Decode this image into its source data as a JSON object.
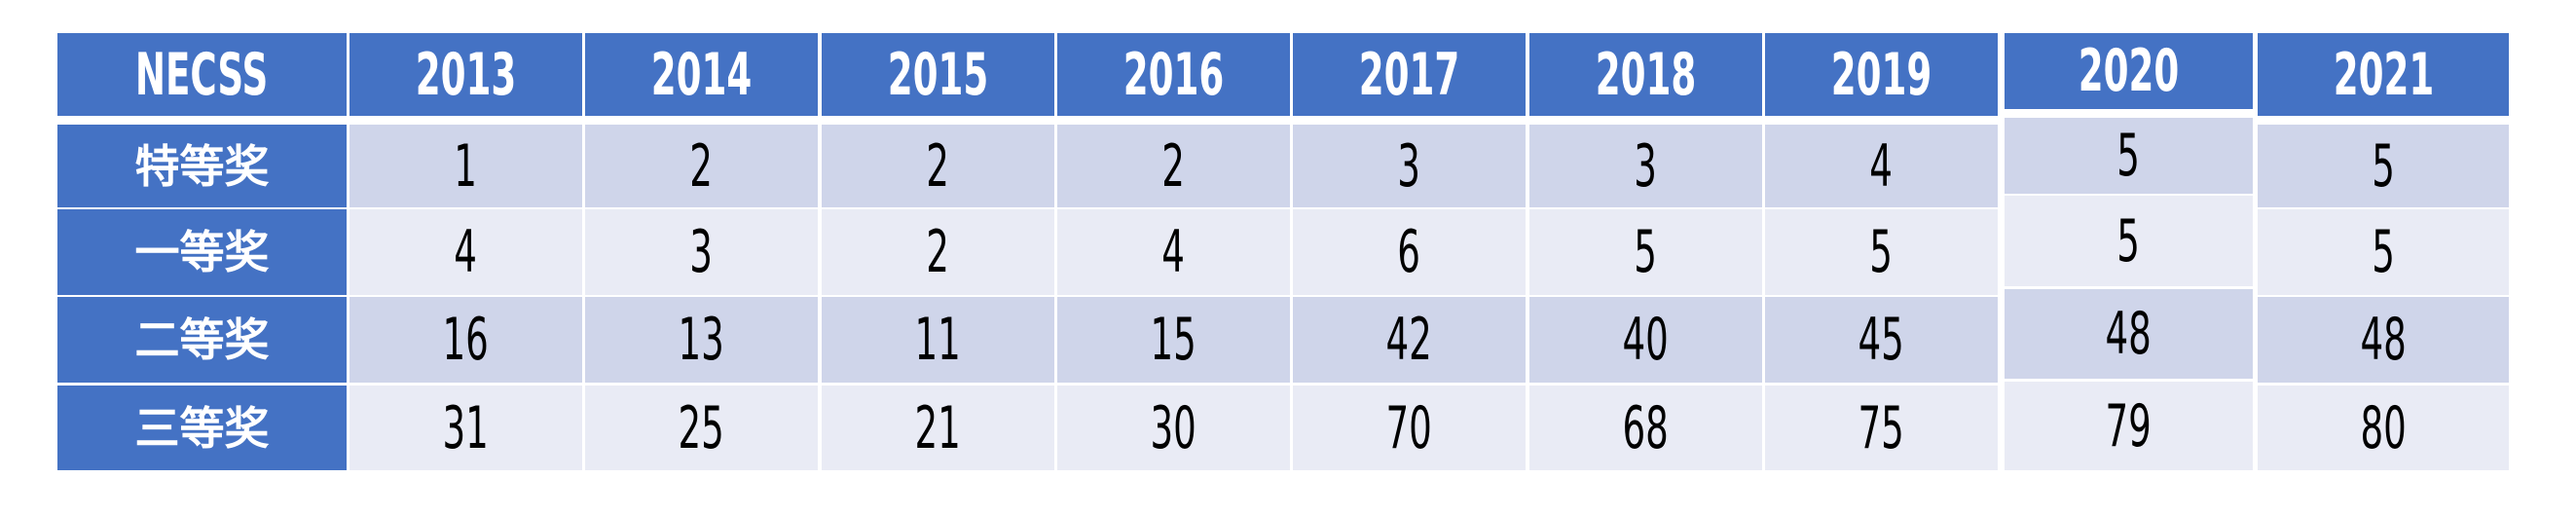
{
  "table": {
    "corner_label": "NECSS",
    "years": [
      "2013",
      "2014",
      "2015",
      "2016",
      "2017",
      "2018",
      "2019",
      "2020",
      "2021"
    ],
    "rows": [
      {
        "label": "特等奖",
        "values": [
          "1",
          "2",
          "2",
          "2",
          "3",
          "3",
          "4",
          "5",
          "5"
        ]
      },
      {
        "label": "一等奖",
        "values": [
          "4",
          "3",
          "2",
          "4",
          "6",
          "5",
          "5",
          "5",
          "5"
        ]
      },
      {
        "label": "二等奖",
        "values": [
          "16",
          "13",
          "11",
          "15",
          "42",
          "40",
          "45",
          "48",
          "48"
        ]
      },
      {
        "label": "三等奖",
        "values": [
          "31",
          "25",
          "21",
          "30",
          "70",
          "68",
          "75",
          "79",
          "80"
        ]
      }
    ]
  },
  "colors": {
    "header": "#4472C4",
    "row_odd": "#CFD5EA",
    "row_even": "#E9EBF5"
  }
}
